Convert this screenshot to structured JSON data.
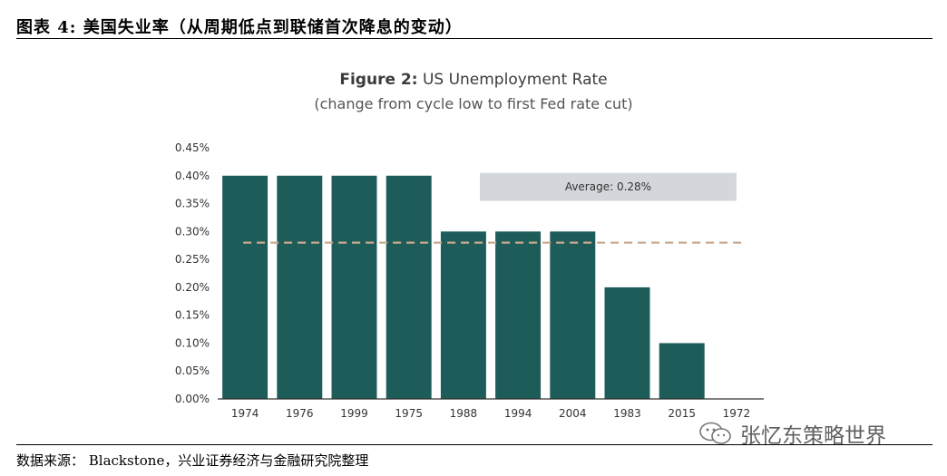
{
  "header": {
    "figure_label": "图表 4:",
    "title": "美国失业率（从周期低点到联储首次降息的变动）"
  },
  "chart_data": {
    "type": "bar",
    "title_prefix": "Figure 2:",
    "title": "US Unemployment Rate",
    "subtitle": "(change from cycle low to first Fed rate cut)",
    "categories": [
      "1974",
      "1976",
      "1999",
      "1975",
      "1988",
      "1994",
      "2004",
      "1983",
      "2015",
      "1972"
    ],
    "values": [
      0.4,
      0.4,
      0.4,
      0.4,
      0.3,
      0.3,
      0.3,
      0.2,
      0.1,
      0.0
    ],
    "ylim": [
      0,
      0.45
    ],
    "yticks": [
      0,
      0.05,
      0.1,
      0.15,
      0.2,
      0.25,
      0.3,
      0.35,
      0.4,
      0.45
    ],
    "ytick_labels": [
      "0.00%",
      "0.05%",
      "0.10%",
      "0.15%",
      "0.20%",
      "0.25%",
      "0.30%",
      "0.35%",
      "0.40%",
      "0.45%"
    ],
    "average": 0.28,
    "average_label": "Average:",
    "average_value": "0.28%",
    "grid": false,
    "colors": {
      "bar": "#1e5c5a",
      "average_line": "#c9a98e",
      "annotation_box": "#d3d6db",
      "axis": "#333333"
    }
  },
  "footer": {
    "source": "数据来源：  Blackstone，兴业证券经济与金融研究院整理"
  },
  "watermark": {
    "text": "张忆东策略世界",
    "icon": "wechat-icon"
  }
}
